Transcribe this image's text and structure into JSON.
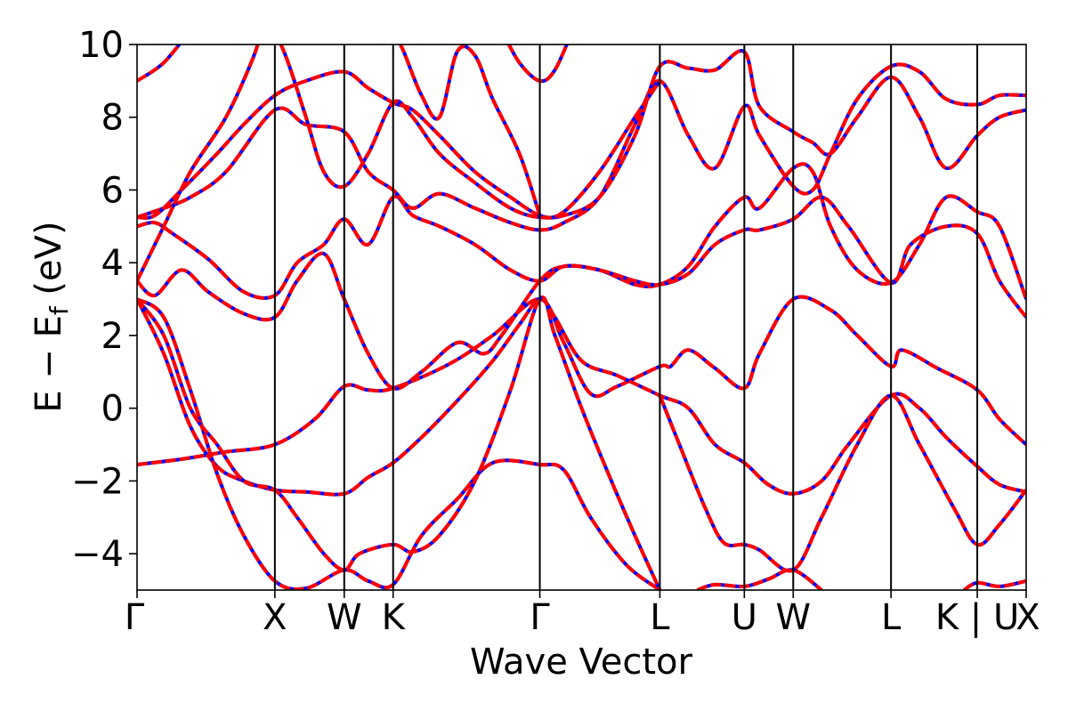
{
  "chart_data": {
    "type": "line",
    "xlabel": "Wave Vector",
    "ylabel": "E − Eᶠ (eV)",
    "ylabel_parts": {
      "main": "E − E",
      "sub": "f",
      "unit": " (eV)"
    },
    "ylim": [
      -5,
      10
    ],
    "yticks": [
      -4,
      -2,
      0,
      2,
      4,
      6,
      8,
      10
    ],
    "ytick_labels": [
      "−4",
      "−2",
      "0",
      "2",
      "4",
      "6",
      "8",
      "10"
    ],
    "x_range": [
      0,
      100
    ],
    "kpoints": [
      {
        "label": "Γ",
        "x": 0
      },
      {
        "label": "X",
        "x": 15.5
      },
      {
        "label": "W",
        "x": 23.3
      },
      {
        "label": "K",
        "x": 28.8
      },
      {
        "label": "Γ",
        "x": 45.3
      },
      {
        "label": "L",
        "x": 58.8
      },
      {
        "label": "U",
        "x": 68.3
      },
      {
        "label": "W",
        "x": 73.8
      },
      {
        "label": "L",
        "x": 84.8
      },
      {
        "label": "K | U",
        "x": 94.5
      },
      {
        "label": "X",
        "x": 100
      }
    ],
    "grid": false,
    "legend": "none",
    "colors": {
      "line_main": "#ff0000",
      "line_dash": "#0000ff",
      "vline": "#000000"
    },
    "series": [
      {
        "points": [
          [
            0,
            -1.55
          ],
          [
            5,
            -1.4
          ],
          [
            10,
            -1.2
          ],
          [
            15.5,
            -1.0
          ],
          [
            20,
            -0.3
          ],
          [
            23.3,
            0.6
          ],
          [
            26,
            0.5
          ],
          [
            28.8,
            0.55
          ],
          [
            35,
            1.2
          ],
          [
            40,
            2.0
          ],
          [
            45.3,
            3.0
          ],
          [
            48,
            1.8
          ],
          [
            51,
            0.4
          ],
          [
            54,
            0.6
          ],
          [
            58.8,
            1.15
          ],
          [
            60,
            1.15
          ],
          [
            62,
            1.6
          ],
          [
            65,
            1.1
          ],
          [
            68.3,
            0.55
          ],
          [
            70,
            1.5
          ],
          [
            73.8,
            3.0
          ],
          [
            78,
            2.7
          ],
          [
            81,
            2.0
          ],
          [
            84.8,
            1.15
          ],
          [
            86,
            1.6
          ],
          [
            90,
            1.1
          ],
          [
            94.5,
            0.5
          ],
          [
            97,
            -0.3
          ],
          [
            100,
            -1.0
          ]
        ]
      },
      {
        "points": [
          [
            0,
            3.0
          ],
          [
            3,
            1.5
          ],
          [
            6,
            -0.5
          ],
          [
            9,
            -1.6
          ],
          [
            12,
            -2.0
          ],
          [
            15.5,
            -2.25
          ],
          [
            19,
            -2.3
          ],
          [
            23.3,
            -2.35
          ],
          [
            26,
            -1.9
          ],
          [
            28.8,
            -1.5
          ],
          [
            32,
            -0.8
          ],
          [
            36,
            0.2
          ],
          [
            40,
            1.3
          ],
          [
            43,
            2.3
          ],
          [
            45.3,
            3.0
          ],
          [
            47,
            2.5
          ],
          [
            50,
            1.3
          ],
          [
            54,
            0.9
          ],
          [
            58.8,
            0.35
          ],
          [
            62,
            0
          ],
          [
            65,
            -1.0
          ],
          [
            68.3,
            -1.5
          ],
          [
            71,
            -2.1
          ],
          [
            73.8,
            -2.35
          ],
          [
            77,
            -2.0
          ],
          [
            80,
            -1.0
          ],
          [
            84.8,
            0.35
          ],
          [
            88,
            0.0
          ],
          [
            91,
            -0.8
          ],
          [
            94.5,
            -1.6
          ],
          [
            97,
            -2.1
          ],
          [
            100,
            -2.3
          ]
        ]
      },
      {
        "points": [
          [
            0,
            3.0
          ],
          [
            3,
            2.5
          ],
          [
            6,
            0.5
          ],
          [
            9,
            -1.8
          ],
          [
            12,
            -3.5
          ],
          [
            15.5,
            -4.75
          ],
          [
            19,
            -4.95
          ],
          [
            23.3,
            -4.45
          ],
          [
            26,
            -4.75
          ],
          [
            28.8,
            -4.85
          ],
          [
            32,
            -3.5
          ],
          [
            36,
            -2.5
          ],
          [
            40,
            -1.5
          ],
          [
            45.3,
            -1.55
          ],
          [
            48,
            -1.7
          ],
          [
            51,
            -3.0
          ],
          [
            55,
            -4.3
          ],
          [
            58.8,
            -5.0
          ]
        ]
      },
      {
        "points": [
          [
            0,
            3.0
          ],
          [
            3,
            2.0
          ],
          [
            6,
            0.0
          ],
          [
            9,
            -1.0
          ],
          [
            12,
            -2.0
          ],
          [
            15.5,
            -2.25
          ],
          [
            18,
            -3.0
          ],
          [
            21,
            -4.0
          ],
          [
            23.3,
            -4.45
          ],
          [
            25,
            -4.0
          ],
          [
            28.8,
            -3.75
          ],
          [
            31,
            -3.95
          ],
          [
            34,
            -3.5
          ],
          [
            38,
            -2.0
          ],
          [
            42,
            0.5
          ],
          [
            45.3,
            3.0
          ],
          [
            47,
            2.0
          ],
          [
            50,
            0.0
          ],
          [
            53,
            -1.8
          ],
          [
            56,
            -3.5
          ],
          [
            58.8,
            -5.0
          ]
        ]
      },
      {
        "points": [
          [
            0,
            3.5
          ],
          [
            2,
            3.1
          ],
          [
            5,
            3.8
          ],
          [
            8,
            3.2
          ],
          [
            12,
            2.6
          ],
          [
            15.5,
            2.5
          ],
          [
            18,
            3.5
          ],
          [
            21,
            4.25
          ],
          [
            23.3,
            3.0
          ],
          [
            26,
            1.5
          ],
          [
            28.8,
            0.55
          ],
          [
            32,
            1.0
          ],
          [
            36,
            1.8
          ],
          [
            39,
            1.5
          ],
          [
            41,
            2.0
          ],
          [
            45.3,
            3.5
          ],
          [
            48,
            3.9
          ],
          [
            52,
            3.8
          ],
          [
            56,
            3.4
          ],
          [
            58.8,
            3.4
          ],
          [
            62,
            3.9
          ],
          [
            65,
            5.0
          ],
          [
            68.3,
            5.8
          ],
          [
            70,
            5.5
          ],
          [
            73.8,
            6.6
          ],
          [
            76,
            6.5
          ],
          [
            78,
            5.0
          ],
          [
            81,
            3.8
          ],
          [
            84.8,
            3.45
          ],
          [
            88,
            4.5
          ],
          [
            91,
            5.8
          ],
          [
            94.5,
            5.4
          ],
          [
            97,
            5.0
          ],
          [
            100,
            3.0
          ]
        ]
      },
      {
        "points": [
          [
            0,
            5.0
          ],
          [
            2,
            5.1
          ],
          [
            4,
            4.8
          ],
          [
            8,
            4.1
          ],
          [
            12,
            3.2
          ],
          [
            15.5,
            3.1
          ],
          [
            18,
            4.0
          ],
          [
            21,
            4.5
          ],
          [
            23.3,
            5.2
          ],
          [
            26,
            4.5
          ],
          [
            28.8,
            5.8
          ],
          [
            31,
            5.3
          ],
          [
            34,
            5.0
          ],
          [
            38,
            4.5
          ],
          [
            42,
            3.8
          ],
          [
            45.3,
            3.5
          ],
          [
            48,
            3.9
          ],
          [
            52,
            3.8
          ],
          [
            56,
            3.5
          ],
          [
            58.8,
            3.4
          ],
          [
            62,
            3.7
          ],
          [
            65,
            4.5
          ],
          [
            68.3,
            4.9
          ],
          [
            70,
            4.9
          ],
          [
            73.8,
            5.2
          ],
          [
            77,
            5.8
          ],
          [
            80,
            5.0
          ],
          [
            84.8,
            3.45
          ],
          [
            87,
            4.5
          ],
          [
            91,
            5.0
          ],
          [
            94.5,
            4.8
          ],
          [
            97,
            3.5
          ],
          [
            100,
            2.5
          ]
        ]
      },
      {
        "points": [
          [
            0,
            5.25
          ],
          [
            3,
            5.5
          ],
          [
            6,
            5.8
          ],
          [
            10,
            6.5
          ],
          [
            15.5,
            8.2
          ],
          [
            19,
            7.8
          ],
          [
            23.3,
            7.6
          ],
          [
            26,
            6.5
          ],
          [
            28.8,
            6.0
          ],
          [
            31,
            5.5
          ],
          [
            34,
            5.9
          ],
          [
            38,
            5.5
          ],
          [
            42,
            5.1
          ],
          [
            45.3,
            4.9
          ],
          [
            48,
            5.1
          ],
          [
            52,
            5.8
          ],
          [
            56,
            7.8
          ],
          [
            58.8,
            9.0
          ],
          [
            62,
            7.5
          ],
          [
            65,
            6.6
          ],
          [
            68.3,
            8.3
          ],
          [
            70,
            7.5
          ],
          [
            73.8,
            6.1
          ],
          [
            76,
            6.0
          ],
          [
            78,
            7.0
          ],
          [
            81,
            8.5
          ],
          [
            84.8,
            9.4
          ],
          [
            88,
            9.25
          ],
          [
            91,
            8.5
          ],
          [
            94.5,
            8.35
          ],
          [
            97,
            8.6
          ],
          [
            100,
            8.6
          ]
        ]
      },
      {
        "points": [
          [
            0,
            5.25
          ],
          [
            2,
            5.3
          ],
          [
            5,
            6.0
          ],
          [
            9,
            7.0
          ],
          [
            12,
            7.8
          ],
          [
            15.5,
            8.6
          ],
          [
            19,
            9.0
          ],
          [
            23.3,
            9.25
          ],
          [
            26,
            8.8
          ],
          [
            28.8,
            8.4
          ],
          [
            31,
            8.2
          ],
          [
            34,
            7.5
          ],
          [
            38,
            6.5
          ],
          [
            42,
            5.8
          ],
          [
            45.3,
            5.3
          ],
          [
            48,
            5.3
          ],
          [
            52,
            5.8
          ],
          [
            56,
            7.5
          ],
          [
            58.8,
            9.4
          ],
          [
            62,
            9.35
          ],
          [
            65,
            9.3
          ],
          [
            68.3,
            9.8
          ],
          [
            70,
            8.3
          ],
          [
            73.8,
            7.6
          ],
          [
            76,
            7.3
          ],
          [
            78,
            7.0
          ],
          [
            81,
            8.0
          ],
          [
            84.8,
            9.1
          ],
          [
            88,
            8.0
          ],
          [
            91,
            6.6
          ],
          [
            94.5,
            7.5
          ],
          [
            97,
            8.0
          ],
          [
            100,
            8.2
          ]
        ]
      },
      {
        "points": [
          [
            0,
            9.0
          ],
          [
            3,
            9.5
          ],
          [
            6,
            10.4
          ]
        ]
      },
      {
        "points": [
          [
            0,
            3.5
          ],
          [
            3,
            5.0
          ],
          [
            6,
            6.5
          ],
          [
            10,
            8.0
          ],
          [
            13,
            9.6
          ],
          [
            14,
            10.4
          ]
        ]
      },
      {
        "points": [
          [
            15.5,
            10.4
          ],
          [
            17,
            9.5
          ],
          [
            19,
            8.0
          ],
          [
            21,
            6.5
          ],
          [
            23.3,
            6.1
          ],
          [
            26,
            7.0
          ],
          [
            28.8,
            8.4
          ],
          [
            31,
            8.0
          ],
          [
            34,
            7.0
          ],
          [
            38,
            6.2
          ],
          [
            42,
            5.5
          ],
          [
            45.3,
            5.25
          ],
          [
            48,
            5.4
          ],
          [
            52,
            6.5
          ],
          [
            56,
            8.0
          ],
          [
            58.8,
            9.0
          ]
        ]
      },
      {
        "points": [
          [
            28.8,
            10.4
          ],
          [
            30,
            9.8
          ],
          [
            32,
            8.6
          ],
          [
            34,
            8.0
          ],
          [
            36,
            9.8
          ],
          [
            38,
            9.7
          ],
          [
            40,
            8.5
          ],
          [
            43,
            7.0
          ],
          [
            45.3,
            5.3
          ]
        ]
      },
      {
        "points": [
          [
            41,
            10.4
          ],
          [
            43,
            9.5
          ],
          [
            45.3,
            9.0
          ],
          [
            47,
            9.3
          ],
          [
            49,
            10.4
          ]
        ]
      },
      {
        "points": [
          [
            63,
            -5.0
          ],
          [
            65,
            -4.85
          ],
          [
            68.3,
            -4.9
          ],
          [
            71,
            -4.7
          ],
          [
            73.8,
            -4.45
          ],
          [
            77,
            -5.0
          ]
        ]
      },
      {
        "points": [
          [
            93,
            -5.0
          ],
          [
            94.5,
            -4.8
          ],
          [
            97,
            -4.9
          ],
          [
            100,
            -4.75
          ]
        ]
      },
      {
        "points": [
          [
            58.8,
            0.35
          ],
          [
            61,
            -1.0
          ],
          [
            64,
            -2.8
          ],
          [
            66,
            -3.7
          ],
          [
            68.3,
            -3.75
          ],
          [
            70,
            -3.9
          ],
          [
            73.8,
            -4.45
          ],
          [
            77,
            -3.0
          ],
          [
            81,
            -1.0
          ],
          [
            84.8,
            0.35
          ],
          [
            88,
            -1.0
          ],
          [
            92,
            -2.8
          ],
          [
            94.5,
            -3.75
          ],
          [
            97,
            -3.2
          ],
          [
            100,
            -2.25
          ]
        ]
      }
    ]
  }
}
